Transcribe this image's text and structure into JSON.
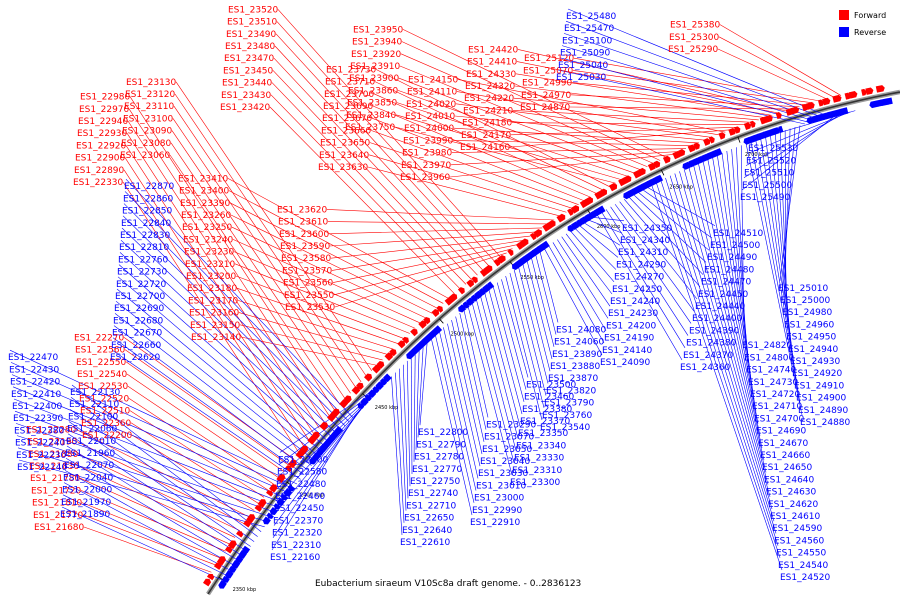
{
  "caption": "Eubacterium siraeum V10Sc8a draft genome. - 0..2836123",
  "legend": [
    {
      "label": "Forward",
      "color": "#ff0000"
    },
    {
      "label": "Reverse",
      "color": "#0000ff"
    }
  ],
  "ticks": [
    "2350 kbp",
    "2400 kbp",
    "2450 kbp",
    "2500 kbp",
    "2550 kbp",
    "2600 kbp",
    "2650 kbp",
    "2700 kbp"
  ],
  "forward_labels": [
    "ES1_21680",
    "ES1_21770",
    "ES1_21810",
    "ES1_21720",
    "ES1_21780",
    "ES1_21830",
    "ES1_21880",
    "ES1_22190",
    "ES1_22280",
    "ES1_22200",
    "ES1_22360",
    "ES1_22510",
    "ES1_22520",
    "ES1_22530",
    "ES1_22540",
    "ES1_22550",
    "ES1_22560",
    "ES1_22270",
    "ES1_22330",
    "ES1_22890",
    "ES1_22900",
    "ES1_22920",
    "ES1_22930",
    "ES1_22940",
    "ES1_22970",
    "ES1_22980",
    "ES1_23060",
    "ES1_23080",
    "ES1_23090",
    "ES1_23100",
    "ES1_23110",
    "ES1_23120",
    "ES1_23130",
    "ES1_23140",
    "ES1_23150",
    "ES1_23160",
    "ES1_23170",
    "ES1_23180",
    "ES1_23200",
    "ES1_23210",
    "ES1_23230",
    "ES1_23240",
    "ES1_23250",
    "ES1_23260",
    "ES1_23390",
    "ES1_23400",
    "ES1_23410",
    "ES1_23420",
    "ES1_23430",
    "ES1_23440",
    "ES1_23450",
    "ES1_23470",
    "ES1_23480",
    "ES1_23490",
    "ES1_23510",
    "ES1_23520",
    "ES1_23530",
    "ES1_23550",
    "ES1_23560",
    "ES1_23570",
    "ES1_23580",
    "ES1_23590",
    "ES1_23600",
    "ES1_23610",
    "ES1_23620",
    "ES1_23630",
    "ES1_23640",
    "ES1_23650",
    "ES1_23660",
    "ES1_23670",
    "ES1_23690",
    "ES1_23700",
    "ES1_23710",
    "ES1_23730",
    "ES1_23750",
    "ES1_23840",
    "ES1_23850",
    "ES1_23860",
    "ES1_23900",
    "ES1_23910",
    "ES1_23920",
    "ES1_23940",
    "ES1_23950",
    "ES1_23960",
    "ES1_23970",
    "ES1_23980",
    "ES1_23990",
    "ES1_24000",
    "ES1_24010",
    "ES1_24020",
    "ES1_24110",
    "ES1_24150",
    "ES1_24160",
    "ES1_24170",
    "ES1_24180",
    "ES1_24210",
    "ES1_24220",
    "ES1_24320",
    "ES1_24330",
    "ES1_24410",
    "ES1_24420",
    "ES1_24870",
    "ES1_24970",
    "ES1_24990",
    "ES1_25070",
    "ES1_25120",
    "ES1_25290",
    "ES1_25300",
    "ES1_25380"
  ],
  "reverse_labels": [
    "ES1_21890",
    "ES1_21970",
    "ES1_22000",
    "ES1_22040",
    "ES1_22070",
    "ES1_21960",
    "ES1_22010",
    "ES1_22060",
    "ES1_22100",
    "ES1_22110",
    "ES1_22130",
    "ES1_22140",
    "ES1_22230",
    "ES1_22240",
    "ES1_22380",
    "ES1_22390",
    "ES1_22400",
    "ES1_22410",
    "ES1_22420",
    "ES1_22430",
    "ES1_22470",
    "ES1_22620",
    "ES1_22660",
    "ES1_22670",
    "ES1_22680",
    "ES1_22690",
    "ES1_22700",
    "ES1_22720",
    "ES1_22730",
    "ES1_22760",
    "ES1_22810",
    "ES1_22830",
    "ES1_22840",
    "ES1_22850",
    "ES1_22860",
    "ES1_22870",
    "ES1_22160",
    "ES1_22310",
    "ES1_22320",
    "ES1_22370",
    "ES1_22450",
    "ES1_22460",
    "ES1_22480",
    "ES1_22580",
    "ES1_22600",
    "ES1_22610",
    "ES1_22640",
    "ES1_22650",
    "ES1_22710",
    "ES1_22740",
    "ES1_22750",
    "ES1_22770",
    "ES1_22780",
    "ES1_22790",
    "ES1_22800",
    "ES1_22910",
    "ES1_22990",
    "ES1_23000",
    "ES1_23010",
    "ES1_23030",
    "ES1_23040",
    "ES1_23050",
    "ES1_23070",
    "ES1_23290",
    "ES1_23300",
    "ES1_23310",
    "ES1_23330",
    "ES1_23340",
    "ES1_23350",
    "ES1_23370",
    "ES1_23380",
    "ES1_23460",
    "ES1_23500",
    "ES1_23540",
    "ES1_23760",
    "ES1_23790",
    "ES1_23820",
    "ES1_23870",
    "ES1_23880",
    "ES1_23890",
    "ES1_24060",
    "ES1_24080",
    "ES1_24090",
    "ES1_24140",
    "ES1_24190",
    "ES1_24200",
    "ES1_24230",
    "ES1_24240",
    "ES1_24250",
    "ES1_24270",
    "ES1_24290",
    "ES1_24310",
    "ES1_24340",
    "ES1_24350",
    "ES1_24360",
    "ES1_24370",
    "ES1_24380",
    "ES1_24390",
    "ES1_24400",
    "ES1_24440",
    "ES1_24450",
    "ES1_24470",
    "ES1_24480",
    "ES1_24490",
    "ES1_24500",
    "ES1_24510",
    "ES1_24520",
    "ES1_24540",
    "ES1_24550",
    "ES1_24560",
    "ES1_24590",
    "ES1_24610",
    "ES1_24620",
    "ES1_24630",
    "ES1_24640",
    "ES1_24650",
    "ES1_24660",
    "ES1_24670",
    "ES1_24690",
    "ES1_24700",
    "ES1_24710",
    "ES1_24720",
    "ES1_24730",
    "ES1_24740",
    "ES1_24800",
    "ES1_24820",
    "ES1_24880",
    "ES1_24890",
    "ES1_24900",
    "ES1_24910",
    "ES1_24920",
    "ES1_24930",
    "ES1_24940",
    "ES1_24950",
    "ES1_24960",
    "ES1_24980",
    "ES1_25000",
    "ES1_25010",
    "ES1_25030",
    "ES1_25040",
    "ES1_25090",
    "ES1_25100",
    "ES1_25470",
    "ES1_25480",
    "ES1_25490",
    "ES1_25500",
    "ES1_25510",
    "ES1_25520",
    "ES1_25530"
  ]
}
